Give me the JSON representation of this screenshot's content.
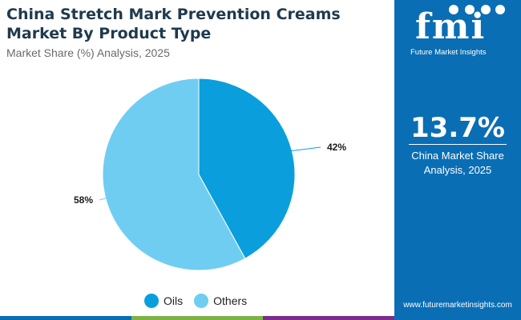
{
  "header": {
    "title": "China Stretch Mark Prevention Creams Market By Product Type",
    "subtitle": "Market Share (%) Analysis, 2025"
  },
  "chart_data": {
    "type": "pie",
    "categories": [
      "Oils",
      "Others"
    ],
    "values": [
      42,
      58
    ],
    "labels": [
      "42%",
      "58%"
    ],
    "colors": [
      "#0a9fdc",
      "#6fcdf2"
    ],
    "legend_position": "bottom"
  },
  "side_panel": {
    "logo_text": "fmi",
    "logo_caption": "Future Market Insights",
    "stat_value": "13.7%",
    "stat_label_line1": "China Market Share",
    "stat_label_line2": "Analysis, 2025",
    "footer_url": "www.futuremarketinsights.com",
    "background": "#0a6eb4"
  },
  "stripe_colors": [
    "#0a6eb4",
    "#7cb342",
    "#7b2d8e"
  ]
}
